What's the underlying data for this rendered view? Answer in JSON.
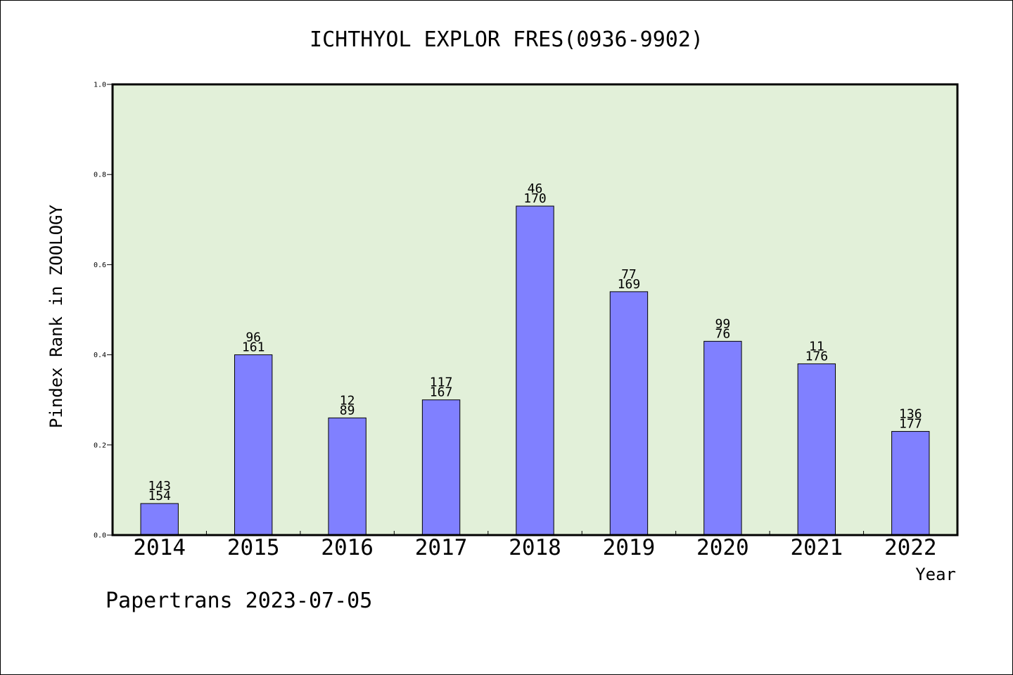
{
  "chart_data": {
    "type": "bar",
    "title": "ICHTHYOL EXPLOR FRES(0936-9902)",
    "xlabel": "Year",
    "ylabel": "Pindex Rank in ZOOLOGY",
    "ylim": [
      0,
      1.0
    ],
    "yticks": [
      "0.0",
      "0.2",
      "0.4",
      "0.6",
      "0.8",
      "1.0"
    ],
    "categories": [
      "2014",
      "2015",
      "2016",
      "2017",
      "2018",
      "2019",
      "2020",
      "2021",
      "2022"
    ],
    "values": [
      0.07,
      0.4,
      0.26,
      0.3,
      0.73,
      0.54,
      0.43,
      0.38,
      0.23
    ],
    "label_top": [
      "143",
      "96",
      "12",
      "117",
      "46",
      "77",
      "99",
      "11",
      "136"
    ],
    "label_bottom": [
      "154",
      "161",
      "89",
      "167",
      "170",
      "169",
      "76",
      "176",
      "177"
    ],
    "bar_color": "#8080ff",
    "plot_background": "#e2f0d9",
    "grid": false
  },
  "footer": {
    "text": "Papertrans 2023-07-05"
  }
}
